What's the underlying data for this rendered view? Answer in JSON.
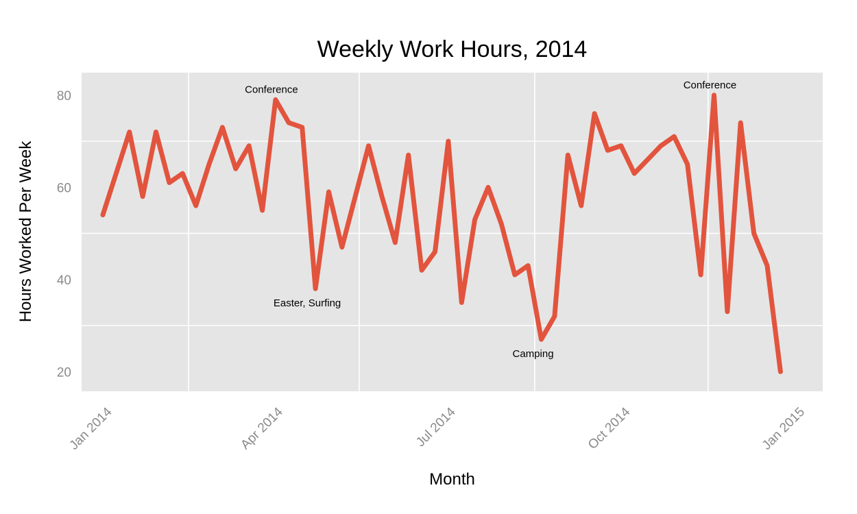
{
  "title": "Weekly Work Hours, 2014",
  "x_axis": {
    "label": "Month",
    "tick_labels": [
      "Jan 2014",
      "Apr 2014",
      "Jul 2014",
      "Oct 2014",
      "Jan 2015"
    ]
  },
  "y_axis": {
    "label": "Hours Worked Per Week",
    "tick_labels": [
      "80",
      "60",
      "40",
      "20"
    ],
    "tick_values": [
      80,
      60,
      40,
      20
    ]
  },
  "chart_data": {
    "type": "line",
    "title": "Weekly Work Hours, 2014",
    "xlabel": "Month",
    "ylabel": "Hours Worked Per Week",
    "x_unit": "week of 2014",
    "x": [
      1,
      2,
      3,
      4,
      5,
      6,
      7,
      8,
      9,
      10,
      11,
      12,
      13,
      14,
      15,
      16,
      17,
      18,
      19,
      20,
      21,
      22,
      23,
      24,
      25,
      26,
      27,
      28,
      29,
      30,
      31,
      32,
      33,
      34,
      35,
      36,
      37,
      38,
      39,
      40,
      41,
      42,
      43,
      44,
      45,
      46,
      47,
      48,
      49,
      50,
      51,
      52
    ],
    "series": [
      {
        "name": "hours_worked_per_week",
        "values": [
          54,
          63,
          72,
          58,
          72,
          61,
          63,
          56,
          65,
          73,
          64,
          69,
          55,
          79,
          74,
          73,
          38,
          59,
          47,
          58,
          69,
          58,
          48,
          67,
          42,
          46,
          70,
          35,
          53,
          60,
          52,
          41,
          43,
          27,
          32,
          67,
          56,
          76,
          68,
          69,
          63,
          66,
          69,
          71,
          65,
          41,
          80,
          33,
          74,
          50,
          43,
          20
        ]
      }
    ],
    "x_tick_labels": [
      "Jan 2014",
      "Apr 2014",
      "Jul 2014",
      "Oct 2014",
      "Jan 2015"
    ],
    "y_ticks": [
      80,
      60,
      40,
      20
    ],
    "ylim": [
      16,
      85
    ],
    "grid": "minor-only, white on gray panel",
    "legend": "none",
    "annotations": [
      {
        "text": "Conference",
        "week": 14,
        "value": 79,
        "placement": "above"
      },
      {
        "text": "Easter, Surfing",
        "week": 17,
        "value": 38,
        "placement": "below"
      },
      {
        "text": "Camping",
        "week": 34,
        "value": 27,
        "placement": "below"
      },
      {
        "text": "Conference",
        "week": 47,
        "value": 80,
        "placement": "above"
      }
    ],
    "colors": {
      "line": "#E2543D",
      "panel_background": "#E5E5E5",
      "gridline": "#FFFFFF",
      "tick_label": "#8A8A8A",
      "text": "#000000"
    }
  }
}
